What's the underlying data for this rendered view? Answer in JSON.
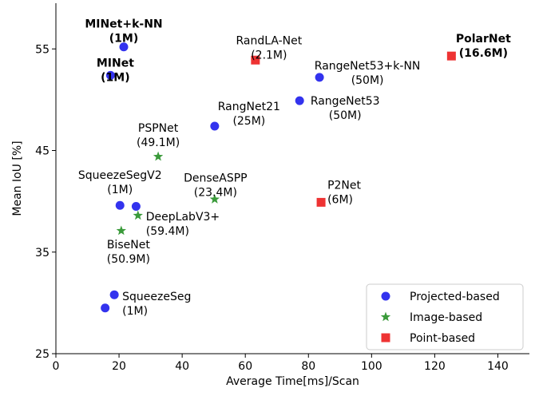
{
  "chart_data": {
    "type": "scatter",
    "title": "",
    "xlabel": "Average Time[ms]/Scan",
    "ylabel": "Mean IoU [%]",
    "xlim": [
      0,
      150
    ],
    "ylim": [
      25,
      59.5
    ],
    "xticks": [
      "0",
      "20",
      "40",
      "60",
      "80",
      "100",
      "120",
      "140"
    ],
    "yticks": [
      "25",
      "35",
      "45",
      "55"
    ],
    "grid": false,
    "legend_position": "bottom-right",
    "series": [
      {
        "name": "Projected-based",
        "marker": "circle",
        "color": "#3333ee",
        "points": [
          {
            "x": 21.5,
            "y": 55.2,
            "label": [
              "MINet+k-NN",
              "(1M)"
            ],
            "bold": true
          },
          {
            "x": 17.3,
            "y": 52.4,
            "label": [
              "MINet",
              "(1M)"
            ],
            "bold": true
          },
          {
            "x": 83.5,
            "y": 52.2,
            "label": [
              "RangeNet53+k-NN",
              "(50M)"
            ],
            "bold": false
          },
          {
            "x": 77.2,
            "y": 49.9,
            "label": [
              "RangeNet53",
              "(50M)"
            ],
            "bold": false
          },
          {
            "x": 50.3,
            "y": 47.4,
            "label": [
              "RangNet21",
              "(25M)"
            ],
            "bold": false
          },
          {
            "x": 20.3,
            "y": 39.6,
            "label": [
              "SqueezeSegV2",
              "(1M)"
            ],
            "bold": false
          },
          {
            "x": 25.4,
            "y": 39.5,
            "label": [],
            "bold": false
          },
          {
            "x": 18.5,
            "y": 30.8,
            "label": [
              "SqueezeSeg",
              "(1M)"
            ],
            "bold": false
          },
          {
            "x": 15.6,
            "y": 29.5,
            "label": [],
            "bold": false
          }
        ]
      },
      {
        "name": "Image-based",
        "marker": "star",
        "color": "#3a9a3a",
        "points": [
          {
            "x": 32.4,
            "y": 44.4,
            "label": [
              "PSPNet",
              "(49.1M)"
            ],
            "bold": false
          },
          {
            "x": 50.3,
            "y": 40.2,
            "label": [
              "DenseASPP",
              "(23.4M)"
            ],
            "bold": false
          },
          {
            "x": 26.0,
            "y": 38.6,
            "label": [
              "DeepLabV3+",
              "(59.4M)"
            ],
            "bold": false
          },
          {
            "x": 20.7,
            "y": 37.1,
            "label": [
              "BiseNet",
              "(50.9M)"
            ],
            "bold": false
          }
        ]
      },
      {
        "name": "Point-based",
        "marker": "square",
        "color": "#ee3333",
        "points": [
          {
            "x": 63.2,
            "y": 53.9,
            "label": [
              "RandLA-Net",
              "(2.1M)"
            ],
            "bold": false
          },
          {
            "x": 125.3,
            "y": 54.3,
            "label": [
              "PolarNet",
              "(16.6M)"
            ],
            "bold": true
          },
          {
            "x": 84.0,
            "y": 39.9,
            "label": [
              "P2Net",
              "(6M)"
            ],
            "bold": false
          }
        ]
      }
    ]
  }
}
